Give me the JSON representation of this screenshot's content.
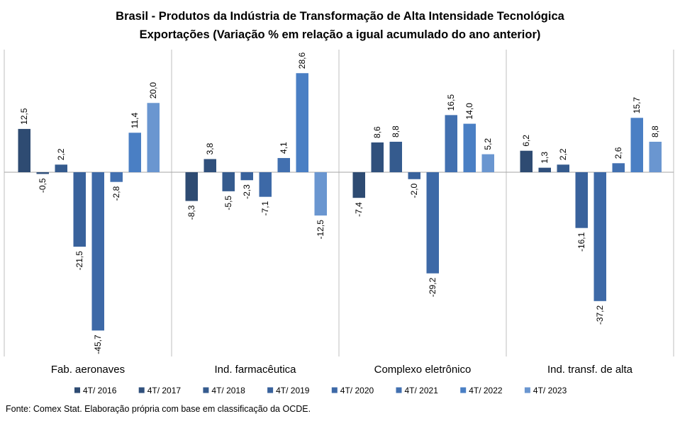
{
  "chart_data": {
    "type": "bar",
    "title": "Brasil - Produtos da Indústria de Transformação de Alta Intensidade Tecnológica",
    "subtitle": "Exportações (Variação % em relação a igual acumulado do ano anterior)",
    "categories": [
      "Fab. aeronaves",
      "Ind. farmacêutica",
      "Complexo eletrônico",
      "Ind. transf. de alta"
    ],
    "series": [
      {
        "name": "4T/ 2016",
        "color": "#2e4b72",
        "values": [
          12.5,
          -8.3,
          -7.4,
          6.2
        ]
      },
      {
        "name": "4T/ 2017",
        "color": "#30507c",
        "values": [
          -0.5,
          3.8,
          8.6,
          1.3
        ]
      },
      {
        "name": "4T/ 2018",
        "color": "#355b8e",
        "values": [
          2.2,
          -5.5,
          8.8,
          2.2
        ]
      },
      {
        "name": "4T/ 2019",
        "color": "#39629c",
        "values": [
          -21.5,
          -2.3,
          -2.0,
          -16.1
        ]
      },
      {
        "name": "4T/ 2020",
        "color": "#3d69a7",
        "values": [
          -45.7,
          -7.1,
          -29.2,
          -37.2
        ]
      },
      {
        "name": "4T/ 2021",
        "color": "#4270b0",
        "values": [
          -2.8,
          4.1,
          16.5,
          2.6
        ]
      },
      {
        "name": "4T/ 2022",
        "color": "#4a7fc4",
        "values": [
          11.4,
          28.6,
          14.0,
          15.7
        ]
      },
      {
        "name": "4T/ 2023",
        "color": "#6a96d0",
        "values": [
          20.0,
          -12.5,
          5.2,
          8.8
        ]
      }
    ],
    "data_labels": [
      [
        "12,5",
        "-8,3",
        "-7,4",
        "6,2"
      ],
      [
        "-0,5",
        "3,8",
        "8,6",
        "1,3"
      ],
      [
        "2,2",
        "-5,5",
        "8,8",
        "2,2"
      ],
      [
        "-21,5",
        "-2,3",
        "-2,0",
        "-16,1"
      ],
      [
        "-45,7",
        "-7,1",
        "-29,2",
        "-37,2"
      ],
      [
        "-2,8",
        "4,1",
        "16,5",
        "2,6"
      ],
      [
        "11,4",
        "28,6",
        "14,0",
        "15,7"
      ],
      [
        "20,0",
        "-12,5",
        "5,2",
        "8,8"
      ]
    ],
    "ylim": [
      -53.2,
      35.4
    ],
    "grid": false,
    "legend_position": "bottom"
  },
  "source_note": "Fonte: Comex Stat. Elaboração própria com base em classificação da OCDE."
}
